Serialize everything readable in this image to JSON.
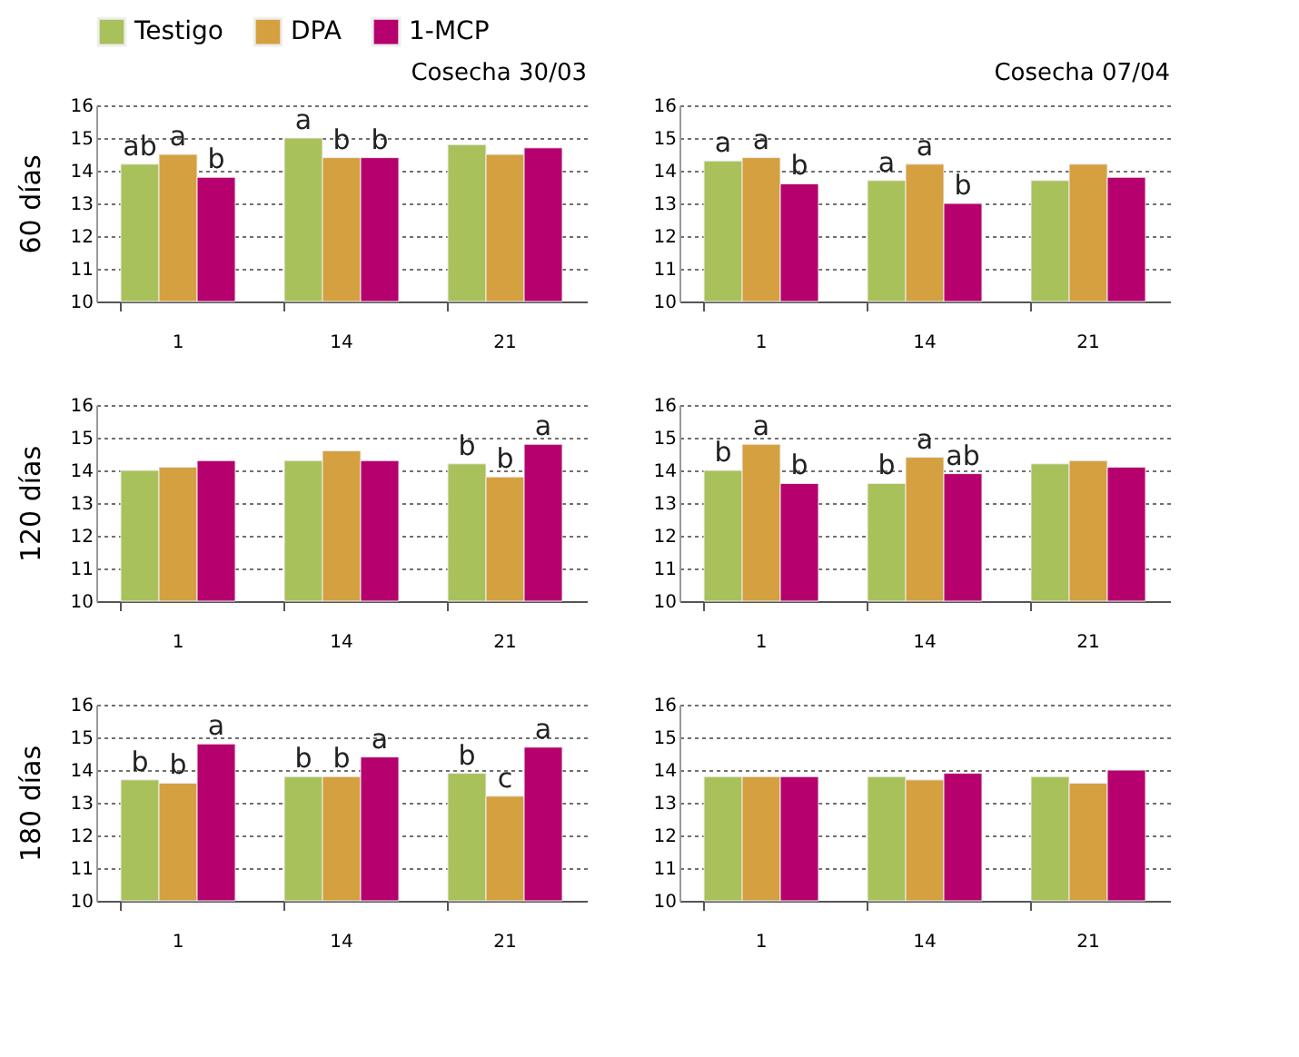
{
  "chart_data": [
    {
      "type": "bar",
      "title": "Cosecha 30/03",
      "ylabel": "60 días",
      "categories": [
        "1",
        "14",
        "21"
      ],
      "ylim": [
        10,
        16
      ],
      "yticks": [
        10,
        11,
        12,
        13,
        14,
        15,
        16
      ],
      "grid": "y",
      "legend": "top left",
      "series": [
        {
          "name": "Testigo",
          "color": "#a9c15a",
          "values": [
            14.2,
            15.0,
            14.8
          ],
          "value_labels": [
            "ab",
            "a",
            null
          ]
        },
        {
          "name": "DPA",
          "color": "#d4a040",
          "values": [
            14.5,
            14.4,
            14.5
          ],
          "value_labels": [
            "a",
            "b",
            null
          ]
        },
        {
          "name": "1-MCP",
          "color": "#b5006e",
          "values": [
            13.8,
            14.4,
            14.7
          ],
          "value_labels": [
            "b",
            "b",
            null
          ]
        }
      ]
    },
    {
      "type": "bar",
      "title": "Cosecha 07/04",
      "categories": [
        "1",
        "14",
        "21"
      ],
      "ylim": [
        10,
        16
      ],
      "yticks": [
        10,
        11,
        12,
        13,
        14,
        15,
        16
      ],
      "grid": "y",
      "series": [
        {
          "color": "#a9c15a",
          "values": [
            14.3,
            13.7,
            13.7
          ],
          "value_labels": [
            "a",
            "a",
            null
          ]
        },
        {
          "color": "#d4a040",
          "values": [
            14.4,
            14.2,
            14.2
          ],
          "value_labels": [
            "a",
            "a",
            null
          ]
        },
        {
          "color": "#b5006e",
          "values": [
            13.6,
            13.0,
            13.8
          ],
          "value_labels": [
            "b",
            "b",
            null
          ]
        }
      ]
    },
    {
      "type": "bar",
      "ylabel": "120 días",
      "categories": [
        "1",
        "14",
        "21"
      ],
      "ylim": [
        10,
        16
      ],
      "yticks": [
        10,
        11,
        12,
        13,
        14,
        15,
        16
      ],
      "grid": "y",
      "series": [
        {
          "color": "#a9c15a",
          "values": [
            14.0,
            14.3,
            14.2
          ],
          "value_labels": [
            null,
            null,
            "b"
          ]
        },
        {
          "color": "#d4a040",
          "values": [
            14.1,
            14.6,
            13.8
          ],
          "value_labels": [
            null,
            null,
            "b"
          ]
        },
        {
          "color": "#b5006e",
          "values": [
            14.3,
            14.3,
            14.8
          ],
          "value_labels": [
            null,
            null,
            "a"
          ]
        }
      ]
    },
    {
      "type": "bar",
      "categories": [
        "1",
        "14",
        "21"
      ],
      "ylim": [
        10,
        16
      ],
      "yticks": [
        10,
        11,
        12,
        13,
        14,
        15,
        16
      ],
      "grid": "y",
      "series": [
        {
          "color": "#a9c15a",
          "values": [
            14.0,
            13.6,
            14.2
          ],
          "value_labels": [
            "b",
            "b",
            null
          ]
        },
        {
          "color": "#d4a040",
          "values": [
            14.8,
            14.4,
            14.3
          ],
          "value_labels": [
            "a",
            "a",
            null
          ]
        },
        {
          "color": "#b5006e",
          "values": [
            13.6,
            13.9,
            14.1
          ],
          "value_labels": [
            "b",
            "ab",
            null
          ]
        }
      ]
    },
    {
      "type": "bar",
      "ylabel": "180 días",
      "categories": [
        "1",
        "14",
        "21"
      ],
      "ylim": [
        10,
        16
      ],
      "yticks": [
        10,
        11,
        12,
        13,
        14,
        15,
        16
      ],
      "grid": "y",
      "series": [
        {
          "color": "#a9c15a",
          "values": [
            13.7,
            13.8,
            13.9
          ],
          "value_labels": [
            "b",
            "b",
            "b"
          ]
        },
        {
          "color": "#d4a040",
          "values": [
            13.6,
            13.8,
            13.2
          ],
          "value_labels": [
            "b",
            "b",
            "c"
          ]
        },
        {
          "color": "#b5006e",
          "values": [
            14.8,
            14.4,
            14.7
          ],
          "value_labels": [
            "a",
            "a",
            "a"
          ]
        }
      ]
    },
    {
      "type": "bar",
      "categories": [
        "1",
        "14",
        "21"
      ],
      "ylim": [
        10,
        16
      ],
      "yticks": [
        10,
        11,
        12,
        13,
        14,
        15,
        16
      ],
      "grid": "y",
      "series": [
        {
          "color": "#a9c15a",
          "values": [
            13.8,
            13.8,
            13.8
          ]
        },
        {
          "color": "#d4a040",
          "values": [
            13.8,
            13.7,
            13.6
          ]
        },
        {
          "color": "#b5006e",
          "values": [
            13.8,
            13.9,
            14.0
          ]
        }
      ]
    }
  ]
}
